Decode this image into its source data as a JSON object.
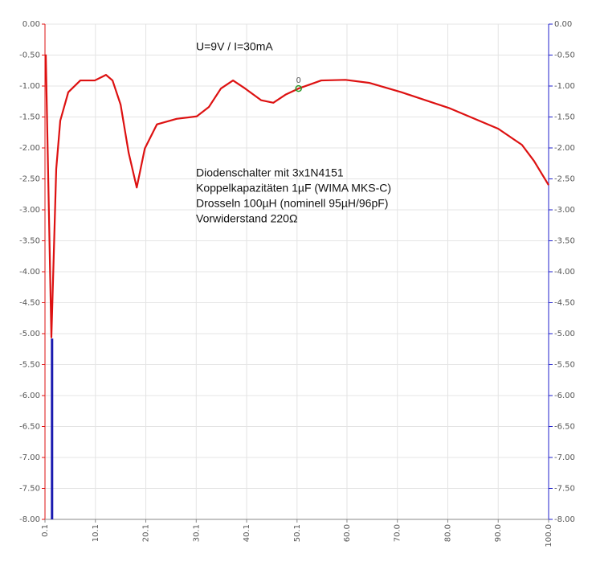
{
  "chart_data": {
    "type": "line",
    "annotations": [
      "U=9V / I=30mA",
      "Diodenschalter mit 3x1N4151",
      "Koppelkapazitäten 1µF (WIMA MKS-C)",
      "Drosseln 100µH (nominell 95µH/96pF)",
      "Vorwiderstand 220Ω"
    ],
    "series": [
      {
        "color": "#dd1111",
        "x": [
          0.26,
          1.37,
          2.33,
          3.13,
          4.72,
          7.11,
          9.98,
          12.2,
          13.5,
          15.1,
          16.7,
          18.3,
          19.9,
          22.3,
          26.2,
          30.2,
          32.6,
          35.0,
          37.4,
          39.8,
          43.0,
          45.4,
          47.8,
          50.4,
          54.9,
          59.7,
          64.5,
          70.8,
          80.4,
          90.0,
          94.7,
          97.1,
          100.0
        ],
        "values": [
          -0.49,
          -5.06,
          -2.34,
          -1.56,
          -1.1,
          -0.91,
          -0.91,
          -0.82,
          -0.91,
          -1.3,
          -2.08,
          -2.64,
          -2.01,
          -1.62,
          -1.53,
          -1.49,
          -1.34,
          -1.04,
          -0.91,
          -1.04,
          -1.23,
          -1.27,
          -1.14,
          -1.04,
          -0.91,
          -0.9,
          -0.95,
          -1.1,
          -1.36,
          -1.69,
          -1.95,
          -2.21,
          -2.6
        ]
      },
      {
        "color": "#1a1ab0",
        "axis": "y2",
        "x": [
          1.5,
          1.5
        ],
        "values": [
          -8.0,
          -5.08
        ]
      }
    ],
    "marker": {
      "x": 50.4,
      "y": -1.04,
      "label": "0",
      "color": "#2a9a2a"
    },
    "xlim": [
      0.1,
      100.0
    ],
    "xticks": [
      0.1,
      10.1,
      20.1,
      30.1,
      40.1,
      50.1,
      {
        "value": 60,
        "label": "60.0"
      },
      {
        "value": 70,
        "label": "70.0"
      },
      {
        "value": 80,
        "label": "80.0"
      },
      {
        "value": 90,
        "label": "90.0"
      },
      {
        "value": 100,
        "label": "100.0"
      }
    ],
    "ylim": [
      -8,
      0
    ],
    "yticks": [
      {
        "value": 0,
        "label": "0.00"
      },
      {
        "value": -0.5,
        "label": "-0.50"
      },
      {
        "value": -1,
        "label": "-1.00"
      },
      {
        "value": -1.5,
        "label": "-1.50"
      },
      {
        "value": -2,
        "label": "-2.00"
      },
      {
        "value": -2.5,
        "label": "-2.50"
      },
      {
        "value": -3,
        "label": "-3.00"
      },
      {
        "value": -3.5,
        "label": "-3.50"
      },
      {
        "value": -4,
        "label": "-4.00"
      },
      {
        "value": -4.5,
        "label": "-4.50"
      },
      {
        "value": -5,
        "label": "-5.00"
      },
      {
        "value": -5.5,
        "label": "-5.50"
      },
      {
        "value": -6,
        "label": "-6.00"
      },
      {
        "value": -6.5,
        "label": "-6.50"
      },
      {
        "value": -7,
        "label": "-7.00"
      },
      {
        "value": -7.5,
        "label": "-7.50"
      },
      {
        "value": -8,
        "label": "-8.00"
      }
    ],
    "y2lim": [
      -8,
      0
    ],
    "y2ticks": [
      {
        "value": 0,
        "label": "0.00"
      },
      {
        "value": -0.5,
        "label": "-0.50"
      },
      {
        "value": -1,
        "label": "-1.00"
      },
      {
        "value": -1.5,
        "label": "-1.50"
      },
      {
        "value": -2,
        "label": "-2.00"
      },
      {
        "value": -2.5,
        "label": "-2.50"
      },
      {
        "value": -3,
        "label": "-3.00"
      },
      {
        "value": -3.5,
        "label": "-3.50"
      },
      {
        "value": -4,
        "label": "-4.00"
      },
      {
        "value": -4.5,
        "label": "-4.50"
      },
      {
        "value": -5,
        "label": "-5.00"
      },
      {
        "value": -5.5,
        "label": "-5.50"
      },
      {
        "value": -6,
        "label": "-6.00"
      },
      {
        "value": -6.5,
        "label": "-6.50"
      },
      {
        "value": -7,
        "label": "-7.00"
      },
      {
        "value": -7.5,
        "label": "-7.50"
      },
      {
        "value": -8,
        "label": "-8.00"
      }
    ],
    "grid": true,
    "left_axis_color": "#dd1111",
    "right_axis_color": "#2222cc"
  }
}
